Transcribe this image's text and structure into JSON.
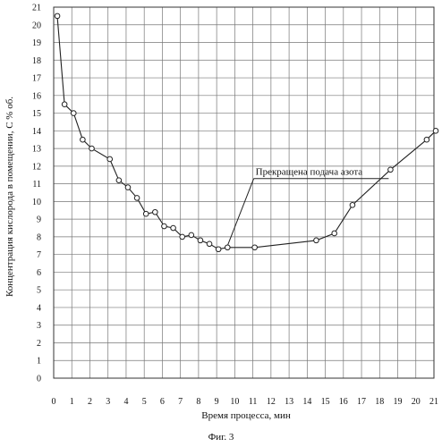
{
  "chart_data": {
    "type": "line",
    "xlabel": "Время процесса, мин",
    "ylabel": "Концентрация кислорода в помещении, С % об.",
    "caption": "Фиг. 3",
    "annotation": "Прекращена подача азота",
    "xlim": [
      0,
      21
    ],
    "ylim": [
      0,
      21
    ],
    "grid": true,
    "x_ticks": [
      "0",
      "1",
      "2",
      "3",
      "4",
      "5",
      "6",
      "7",
      "8",
      "9",
      "10",
      "11",
      "12",
      "13",
      "14",
      "15",
      "16",
      "17",
      "18",
      "19",
      "20",
      "21"
    ],
    "y_ticks": [
      "0",
      "1",
      "2",
      "3",
      "4",
      "5",
      "6",
      "7",
      "8",
      "9",
      "10",
      "11",
      "12",
      "13",
      "14",
      "15",
      "16",
      "17",
      "18",
      "19",
      "20",
      "21"
    ],
    "series": [
      {
        "x": [
          0.2,
          0.6,
          1.1,
          1.6,
          2.1,
          3.1,
          3.6,
          4.1,
          4.6,
          5.1,
          5.6,
          6.1,
          6.6,
          7.1,
          7.6,
          8.1,
          8.6,
          9.1,
          9.6,
          11.1,
          14.5,
          15.5,
          16.5,
          18.6,
          20.6,
          21.1
        ],
        "y": [
          20.5,
          15.5,
          15.0,
          13.5,
          13.0,
          12.4,
          11.2,
          10.8,
          10.2,
          9.3,
          9.4,
          8.6,
          8.5,
          8.0,
          8.1,
          7.8,
          7.6,
          7.3,
          7.4,
          7.4,
          7.8,
          8.2,
          9.8,
          11.8,
          13.5,
          14.0
        ]
      }
    ],
    "markers": "open-circle",
    "line_color": "#222222",
    "grid_color": "#777777"
  }
}
